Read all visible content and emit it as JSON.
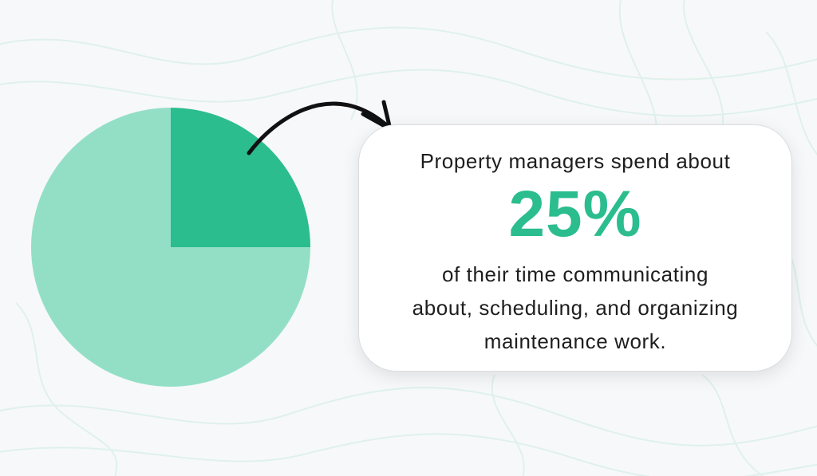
{
  "chart_data": {
    "type": "pie",
    "slices": [
      {
        "label": "",
        "value": 25,
        "color": "#2bbd8e"
      },
      {
        "label": "",
        "value": 75,
        "color": "#93dfc6"
      }
    ],
    "start_angle_deg": 0,
    "direction": "clockwise"
  },
  "callout": {
    "lead": "Property managers spend about",
    "value": "25%",
    "lines": [
      "of their time communicating",
      "about, scheduling, and organizing",
      "maintenance work."
    ]
  },
  "colors": {
    "accent": "#2bbd8e",
    "accent_light": "#93dfc6",
    "background": "#f7f8fa",
    "contour": "#dff1ea",
    "text": "#1e1e1e"
  }
}
